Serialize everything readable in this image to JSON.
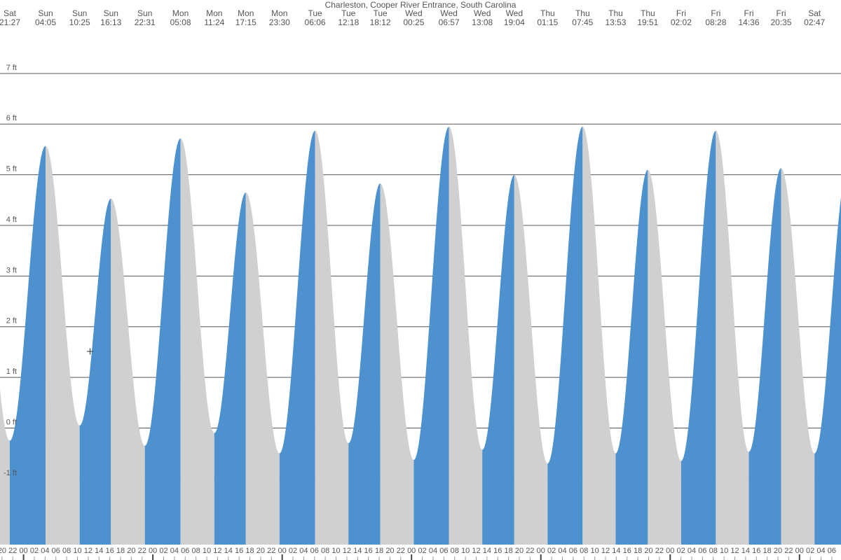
{
  "chart_data": {
    "type": "tide-area",
    "title": "Charleston, Cooper River Entrance, South Carolina",
    "colors": {
      "rising": "#4d92cf",
      "falling": "#d0d0d0"
    },
    "extremes": [
      {
        "day": "Sat",
        "time": "21:27",
        "height": -0.25
      },
      {
        "day": "Sun",
        "time": "04:05",
        "height": 5.57
      },
      {
        "day": "Sun",
        "time": "10:25",
        "height": 0.05
      },
      {
        "day": "Sun",
        "time": "16:13",
        "height": 4.53
      },
      {
        "day": "Sun",
        "time": "22:31",
        "height": -0.35
      },
      {
        "day": "Mon",
        "time": "05:08",
        "height": 5.72
      },
      {
        "day": "Mon",
        "time": "11:24",
        "height": -0.1
      },
      {
        "day": "Mon",
        "time": "17:15",
        "height": 4.65
      },
      {
        "day": "Mon",
        "time": "23:30",
        "height": -0.5
      },
      {
        "day": "Tue",
        "time": "06:06",
        "height": 5.87
      },
      {
        "day": "Tue",
        "time": "12:18",
        "height": -0.3
      },
      {
        "day": "Tue",
        "time": "18:12",
        "height": 4.83
      },
      {
        "day": "Wed",
        "time": "00:25",
        "height": -0.63
      },
      {
        "day": "Wed",
        "time": "06:57",
        "height": 5.95
      },
      {
        "day": "Wed",
        "time": "13:08",
        "height": -0.43
      },
      {
        "day": "Wed",
        "time": "19:04",
        "height": 5.0
      },
      {
        "day": "Thu",
        "time": "01:15",
        "height": -0.7
      },
      {
        "day": "Thu",
        "time": "07:45",
        "height": 5.95
      },
      {
        "day": "Thu",
        "time": "13:53",
        "height": -0.5
      },
      {
        "day": "Thu",
        "time": "19:51",
        "height": 5.1
      },
      {
        "day": "Fri",
        "time": "02:02",
        "height": -0.65
      },
      {
        "day": "Fri",
        "time": "08:28",
        "height": 5.87
      },
      {
        "day": "Fri",
        "time": "14:36",
        "height": -0.47
      },
      {
        "day": "Fri",
        "time": "20:35",
        "height": 5.13
      },
      {
        "day": "Sat",
        "time": "02:47",
        "height": -0.5
      }
    ],
    "xlim": [
      -4.37,
      151.7
    ],
    "ylim": [
      -2.3,
      8.45
    ],
    "yticks": [
      {
        "value": -1,
        "label": "-1 ft"
      },
      {
        "value": 0,
        "label": "0 ft"
      },
      {
        "value": 1,
        "label": "1 ft"
      },
      {
        "value": 2,
        "label": "2 ft"
      },
      {
        "value": 3,
        "label": "3 ft"
      },
      {
        "value": 4,
        "label": "4 ft"
      },
      {
        "value": 5,
        "label": "5 ft"
      },
      {
        "value": 6,
        "label": "6 ft"
      },
      {
        "value": 7,
        "label": "7 ft"
      }
    ],
    "xticks": [
      {
        "value": -4,
        "label": "20"
      },
      {
        "value": -2,
        "label": "22"
      },
      {
        "value": 0,
        "label": "00"
      },
      {
        "value": 2,
        "label": "02"
      },
      {
        "value": 4,
        "label": "04"
      },
      {
        "value": 6,
        "label": "06"
      },
      {
        "value": 8,
        "label": "08"
      },
      {
        "value": 10,
        "label": "10"
      },
      {
        "value": 12,
        "label": "12"
      },
      {
        "value": 14,
        "label": "14"
      },
      {
        "value": 16,
        "label": "16"
      },
      {
        "value": 18,
        "label": "18"
      },
      {
        "value": 20,
        "label": "20"
      },
      {
        "value": 22,
        "label": "22"
      },
      {
        "value": 24,
        "label": "00"
      },
      {
        "value": 26,
        "label": "02"
      },
      {
        "value": 28,
        "label": "04"
      },
      {
        "value": 30,
        "label": "06"
      },
      {
        "value": 32,
        "label": "08"
      },
      {
        "value": 34,
        "label": "10"
      },
      {
        "value": 36,
        "label": "12"
      },
      {
        "value": 38,
        "label": "14"
      },
      {
        "value": 40,
        "label": "16"
      },
      {
        "value": 42,
        "label": "18"
      },
      {
        "value": 44,
        "label": "20"
      },
      {
        "value": 46,
        "label": "22"
      },
      {
        "value": 48,
        "label": "00"
      },
      {
        "value": 50,
        "label": "02"
      },
      {
        "value": 52,
        "label": "04"
      },
      {
        "value": 54,
        "label": "06"
      },
      {
        "value": 56,
        "label": "08"
      },
      {
        "value": 58,
        "label": "10"
      },
      {
        "value": 60,
        "label": "12"
      },
      {
        "value": 62,
        "label": "14"
      },
      {
        "value": 64,
        "label": "16"
      },
      {
        "value": 66,
        "label": "18"
      },
      {
        "value": 68,
        "label": "20"
      },
      {
        "value": 70,
        "label": "22"
      },
      {
        "value": 72,
        "label": "00"
      },
      {
        "value": 74,
        "label": "02"
      },
      {
        "value": 76,
        "label": "04"
      },
      {
        "value": 78,
        "label": "06"
      },
      {
        "value": 80,
        "label": "08"
      },
      {
        "value": 82,
        "label": "10"
      },
      {
        "value": 84,
        "label": "12"
      },
      {
        "value": 86,
        "label": "14"
      },
      {
        "value": 88,
        "label": "16"
      },
      {
        "value": 90,
        "label": "18"
      },
      {
        "value": 92,
        "label": "20"
      },
      {
        "value": 94,
        "label": "22"
      },
      {
        "value": 96,
        "label": "00"
      },
      {
        "value": 98,
        "label": "02"
      },
      {
        "value": 100,
        "label": "04"
      },
      {
        "value": 102,
        "label": "06"
      },
      {
        "value": 104,
        "label": "08"
      },
      {
        "value": 106,
        "label": "10"
      },
      {
        "value": 108,
        "label": "12"
      },
      {
        "value": 110,
        "label": "14"
      },
      {
        "value": 112,
        "label": "16"
      },
      {
        "value": 114,
        "label": "18"
      },
      {
        "value": 116,
        "label": "20"
      },
      {
        "value": 118,
        "label": "22"
      },
      {
        "value": 120,
        "label": "00"
      },
      {
        "value": 122,
        "label": "02"
      },
      {
        "value": 124,
        "label": "04"
      },
      {
        "value": 126,
        "label": "06"
      },
      {
        "value": 128,
        "label": "08"
      },
      {
        "value": 130,
        "label": "10"
      },
      {
        "value": 132,
        "label": "12"
      },
      {
        "value": 134,
        "label": "14"
      },
      {
        "value": 136,
        "label": "16"
      },
      {
        "value": 138,
        "label": "18"
      },
      {
        "value": 140,
        "label": "20"
      },
      {
        "value": 142,
        "label": "22"
      },
      {
        "value": 144,
        "label": "00"
      },
      {
        "value": 146,
        "label": "02"
      },
      {
        "value": 148,
        "label": "04"
      },
      {
        "value": 150,
        "label": "06"
      }
    ],
    "grid": true
  }
}
